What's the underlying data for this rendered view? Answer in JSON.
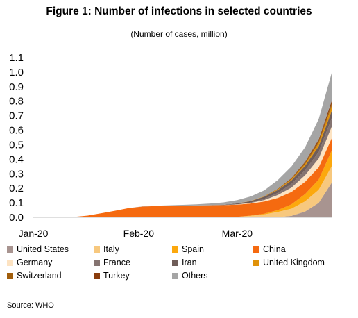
{
  "header": {
    "title": "Figure 1: Number of infections in selected countries",
    "subtitle": "(Number of cases, million)"
  },
  "source": "Source: WHO",
  "chart_data": {
    "type": "area",
    "stacked": true,
    "x": [
      1,
      5,
      9,
      13,
      17,
      21,
      25,
      29,
      33,
      37,
      41,
      45,
      49,
      53,
      57,
      61,
      65,
      69,
      73,
      77,
      81,
      85,
      89
    ],
    "x_ticks": [
      {
        "x": 1,
        "label": "Jan-20"
      },
      {
        "x": 32,
        "label": "Feb-20"
      },
      {
        "x": 61,
        "label": "Mar-20"
      }
    ],
    "xlim": [
      1,
      89
    ],
    "ylim": [
      0,
      1.1
    ],
    "y_ticks": [
      "0.0",
      "0.1",
      "0.2",
      "0.3",
      "0.4",
      "0.5",
      "0.6",
      "0.7",
      "0.8",
      "0.9",
      "1.0",
      "1.1"
    ],
    "grid": false,
    "legend_position": "bottom",
    "series": [
      {
        "name": "United States",
        "color": "#a89490",
        "values": [
          0,
          0,
          0,
          0,
          0,
          0,
          0,
          0,
          0,
          0,
          0,
          0,
          0,
          0,
          0,
          0,
          0,
          0,
          0.002,
          0.01,
          0.04,
          0.1,
          0.245
        ]
      },
      {
        "name": "Italy",
        "color": "#f7c87e",
        "values": [
          0,
          0,
          0,
          0,
          0,
          0,
          0,
          0,
          0,
          0,
          0,
          0,
          0,
          0,
          0.001,
          0.004,
          0.01,
          0.02,
          0.035,
          0.05,
          0.07,
          0.09,
          0.115
        ]
      },
      {
        "name": "Spain",
        "color": "#fca80d",
        "values": [
          0,
          0,
          0,
          0,
          0,
          0,
          0,
          0,
          0,
          0,
          0,
          0,
          0,
          0,
          0,
          0,
          0.002,
          0.005,
          0.013,
          0.03,
          0.05,
          0.07,
          0.11
        ]
      },
      {
        "name": "China",
        "color": "#f56a10",
        "values": [
          0,
          0,
          0.0001,
          0.003,
          0.012,
          0.028,
          0.045,
          0.063,
          0.074,
          0.078,
          0.08,
          0.081,
          0.082,
          0.083,
          0.083,
          0.083,
          0.083,
          0.084,
          0.084,
          0.085,
          0.085,
          0.085,
          0.085
        ]
      },
      {
        "name": "Germany",
        "color": "#fde3c2",
        "values": [
          0,
          0,
          0,
          0,
          0,
          0,
          0,
          0,
          0,
          0,
          0,
          0,
          0,
          0,
          0,
          0.002,
          0.004,
          0.01,
          0.02,
          0.03,
          0.045,
          0.06,
          0.08
        ]
      },
      {
        "name": "France",
        "color": "#857471",
        "values": [
          0,
          0,
          0,
          0,
          0,
          0,
          0,
          0,
          0,
          0,
          0,
          0,
          0,
          0,
          0,
          0.001,
          0.003,
          0.008,
          0.015,
          0.025,
          0.035,
          0.045,
          0.06
        ]
      },
      {
        "name": "Iran",
        "color": "#6f5d59",
        "values": [
          0,
          0,
          0,
          0,
          0,
          0,
          0,
          0,
          0,
          0,
          0,
          0,
          0,
          0,
          0.002,
          0.006,
          0.01,
          0.015,
          0.02,
          0.025,
          0.03,
          0.04,
          0.05
        ]
      },
      {
        "name": "United Kingdom",
        "color": "#e0920a",
        "values": [
          0,
          0,
          0,
          0,
          0,
          0,
          0,
          0,
          0,
          0,
          0,
          0,
          0,
          0,
          0,
          0,
          0.001,
          0.002,
          0.004,
          0.007,
          0.012,
          0.022,
          0.034
        ]
      },
      {
        "name": "Switzerland",
        "color": "#a15e0c",
        "values": [
          0,
          0,
          0,
          0,
          0,
          0,
          0,
          0,
          0,
          0,
          0,
          0,
          0,
          0,
          0,
          0,
          0.001,
          0.002,
          0.004,
          0.007,
          0.011,
          0.015,
          0.018
        ]
      },
      {
        "name": "Turkey",
        "color": "#8a3c0c",
        "values": [
          0,
          0,
          0,
          0,
          0,
          0,
          0,
          0,
          0,
          0,
          0,
          0,
          0,
          0,
          0,
          0,
          0,
          0,
          0.001,
          0.002,
          0.005,
          0.01,
          0.018
        ]
      },
      {
        "name": "Others",
        "color": "#a5a5a5",
        "values": [
          0,
          0,
          0,
          0,
          0,
          0,
          0,
          0.0003,
          0.001,
          0.002,
          0.003,
          0.005,
          0.008,
          0.012,
          0.017,
          0.022,
          0.03,
          0.04,
          0.06,
          0.08,
          0.1,
          0.14,
          0.195
        ]
      }
    ]
  }
}
